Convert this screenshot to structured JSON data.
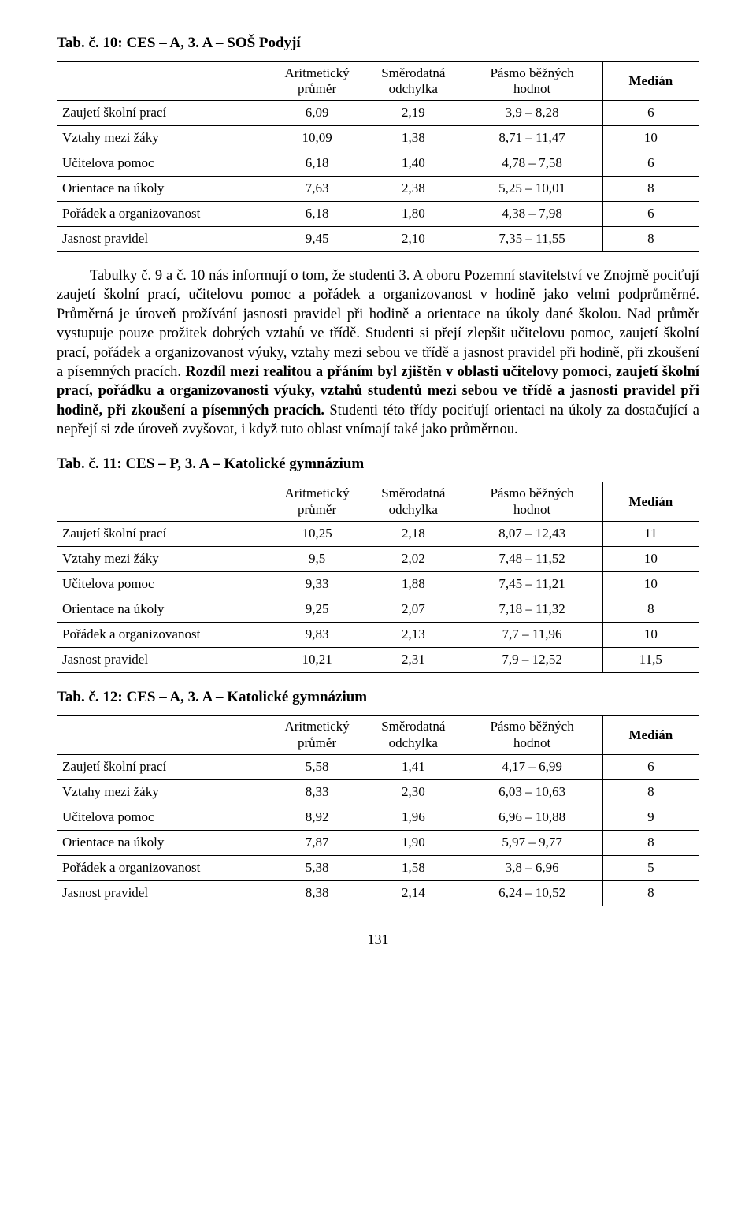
{
  "table1": {
    "title": "Tab. č. 10: CES – A, 3. A – SOŠ Podyjí",
    "columns": [
      {
        "l1": "Aritmetický",
        "l2": "průměr",
        "bold": false
      },
      {
        "l1": "Směrodatná",
        "l2": "odchylka",
        "bold": false
      },
      {
        "l1": "Pásmo běžných",
        "l2": "hodnot",
        "bold": false
      },
      {
        "l1": "Medián",
        "l2": "",
        "bold": true
      }
    ],
    "rows": [
      {
        "label": "Zaujetí školní prací",
        "c1": "6,09",
        "c2": "2,19",
        "c3": "3,9 – 8,28",
        "c4": "6"
      },
      {
        "label": "Vztahy mezi žáky",
        "c1": "10,09",
        "c2": "1,38",
        "c3": "8,71 – 11,47",
        "c4": "10"
      },
      {
        "label": "Učitelova pomoc",
        "c1": "6,18",
        "c2": "1,40",
        "c3": "4,78 – 7,58",
        "c4": "6"
      },
      {
        "label": "Orientace na úkoly",
        "c1": "7,63",
        "c2": "2,38",
        "c3": "5,25 – 10,01",
        "c4": "8"
      },
      {
        "label": "Pořádek a organizovanost",
        "c1": "6,18",
        "c2": "1,80",
        "c3": "4,38 – 7,98",
        "c4": "6"
      },
      {
        "label": "Jasnost pravidel",
        "c1": "9,45",
        "c2": "2,10",
        "c3": "7,35 – 11,55",
        "c4": "8"
      }
    ],
    "col_widths": [
      "33%",
      "15%",
      "15%",
      "22%",
      "15%"
    ]
  },
  "paragraph": {
    "seg1": "Tabulky č. 9 a č. 10 nás informují o tom, že studenti 3. A oboru Pozemní stavitelství ve Znojmě pociťují zaujetí školní prací, učitelovu pomoc a pořádek a organizovanost v hodině jako velmi podprůměrné. Průměrná je úroveň prožívání jasnosti pravidel při hodině a orientace na úkoly dané školou. Nad průměr vystupuje pouze prožitek dobrých vztahů ve třídě. Studenti si přejí zlepšit učitelovu pomoc, zaujetí školní prací, pořádek a organizovanost výuky, vztahy mezi sebou ve třídě a jasnost pravidel při hodině, při zkoušení a písemných pracích. ",
    "seg2_bold": "Rozdíl mezi realitou a přáním byl zjištěn v oblasti učitelovy pomoci, zaujetí školní prací, pořádku a organizovanosti výuky, vztahů studentů mezi sebou ve třídě a jasnosti pravidel při hodině, při zkoušení a písemných pracích.",
    "seg3": " Studenti této třídy pociťují orientaci na úkoly za dostačující a nepřejí si zde úroveň zvyšovat, i když tuto oblast vnímají také jako průměrnou."
  },
  "table2": {
    "title": "Tab. č. 11: CES – P, 3. A – Katolické gymnázium",
    "columns": [
      {
        "l1": "Aritmetický",
        "l2": "průměr",
        "bold": false
      },
      {
        "l1": "Směrodatná",
        "l2": "odchylka",
        "bold": false
      },
      {
        "l1": "Pásmo běžných",
        "l2": "hodnot",
        "bold": false
      },
      {
        "l1": "Medián",
        "l2": "",
        "bold": true
      }
    ],
    "rows": [
      {
        "label": "Zaujetí školní prací",
        "c1": "10,25",
        "c2": "2,18",
        "c3": "8,07 – 12,43",
        "c4": "11"
      },
      {
        "label": "Vztahy mezi žáky",
        "c1": "9,5",
        "c2": "2,02",
        "c3": "7,48 – 11,52",
        "c4": "10"
      },
      {
        "label": "Učitelova pomoc",
        "c1": "9,33",
        "c2": "1,88",
        "c3": "7,45 – 11,21",
        "c4": "10"
      },
      {
        "label": "Orientace na úkoly",
        "c1": "9,25",
        "c2": "2,07",
        "c3": "7,18 – 11,32",
        "c4": "8"
      },
      {
        "label": "Pořádek a organizovanost",
        "c1": "9,83",
        "c2": "2,13",
        "c3": "7,7 – 11,96",
        "c4": "10"
      },
      {
        "label": "Jasnost pravidel",
        "c1": "10,21",
        "c2": "2,31",
        "c3": "7,9 – 12,52",
        "c4": "11,5"
      }
    ],
    "col_widths": [
      "33%",
      "15%",
      "15%",
      "22%",
      "15%"
    ]
  },
  "table3": {
    "title": "Tab. č. 12: CES – A, 3. A – Katolické gymnázium",
    "columns": [
      {
        "l1": "Aritmetický",
        "l2": "průměr",
        "bold": false
      },
      {
        "l1": "Směrodatná",
        "l2": "odchylka",
        "bold": false
      },
      {
        "l1": "Pásmo běžných",
        "l2": "hodnot",
        "bold": false
      },
      {
        "l1": "Medián",
        "l2": "",
        "bold": true
      }
    ],
    "rows": [
      {
        "label": "Zaujetí školní prací",
        "c1": "5,58",
        "c2": "1,41",
        "c3": "4,17 – 6,99",
        "c4": "6"
      },
      {
        "label": "Vztahy mezi žáky",
        "c1": "8,33",
        "c2": "2,30",
        "c3": "6,03 – 10,63",
        "c4": "8"
      },
      {
        "label": "Učitelova pomoc",
        "c1": "8,92",
        "c2": "1,96",
        "c3": "6,96 – 10,88",
        "c4": "9"
      },
      {
        "label": "Orientace na úkoly",
        "c1": "7,87",
        "c2": "1,90",
        "c3": "5,97 – 9,77",
        "c4": "8"
      },
      {
        "label": "Pořádek a organizovanost",
        "c1": "5,38",
        "c2": "1,58",
        "c3": "3,8 – 6,96",
        "c4": "5"
      },
      {
        "label": "Jasnost pravidel",
        "c1": "8,38",
        "c2": "2,14",
        "c3": "6,24 – 10,52",
        "c4": "8"
      }
    ],
    "col_widths": [
      "33%",
      "15%",
      "15%",
      "22%",
      "15%"
    ]
  },
  "page_number": "131",
  "style": {
    "background": "#ffffff",
    "text_color": "#000000",
    "border_color": "#000000",
    "body_fontsize_pt": 14,
    "heading_fontsize_pt": 14,
    "table_fontsize_pt": 13
  }
}
